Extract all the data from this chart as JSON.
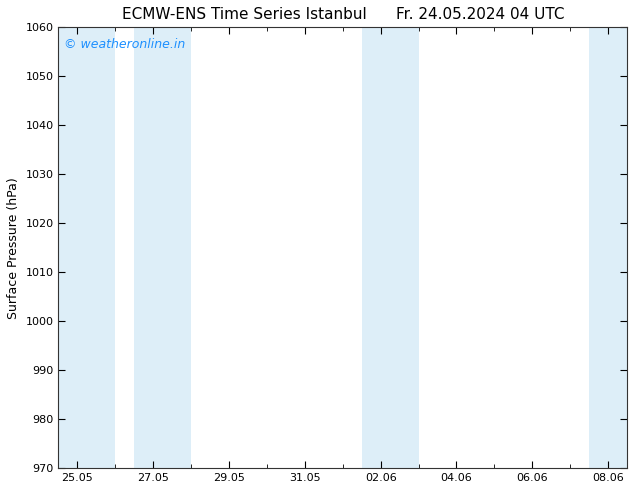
{
  "title_left": "ECMW-ENS Time Series Istanbul",
  "title_right": "Fr. 24.05.2024 04 UTC",
  "ylabel": "Surface Pressure (hPa)",
  "ylim": [
    970,
    1060
  ],
  "yticks": [
    970,
    980,
    990,
    1000,
    1010,
    1020,
    1030,
    1040,
    1050,
    1060
  ],
  "xtick_labels": [
    "25.05",
    "27.05",
    "29.05",
    "31.05",
    "02.06",
    "04.06",
    "06.06",
    "08.06"
  ],
  "xtick_positions": [
    0,
    2,
    4,
    6,
    8,
    10,
    12,
    14
  ],
  "shaded_bands": [
    {
      "x_start": -0.5,
      "x_end": 1.0
    },
    {
      "x_start": 1.5,
      "x_end": 3.0
    },
    {
      "x_start": 7.5,
      "x_end": 9.0
    },
    {
      "x_start": 13.5,
      "x_end": 14.5
    }
  ],
  "shade_color": "#ddeef8",
  "background_color": "#ffffff",
  "watermark_text": "© weatheronline.in",
  "watermark_color": "#1e90ff",
  "watermark_fontsize": 9,
  "title_fontsize": 11,
  "ylabel_fontsize": 9,
  "tick_fontsize": 8,
  "x_min": -0.5,
  "x_max": 14.5
}
